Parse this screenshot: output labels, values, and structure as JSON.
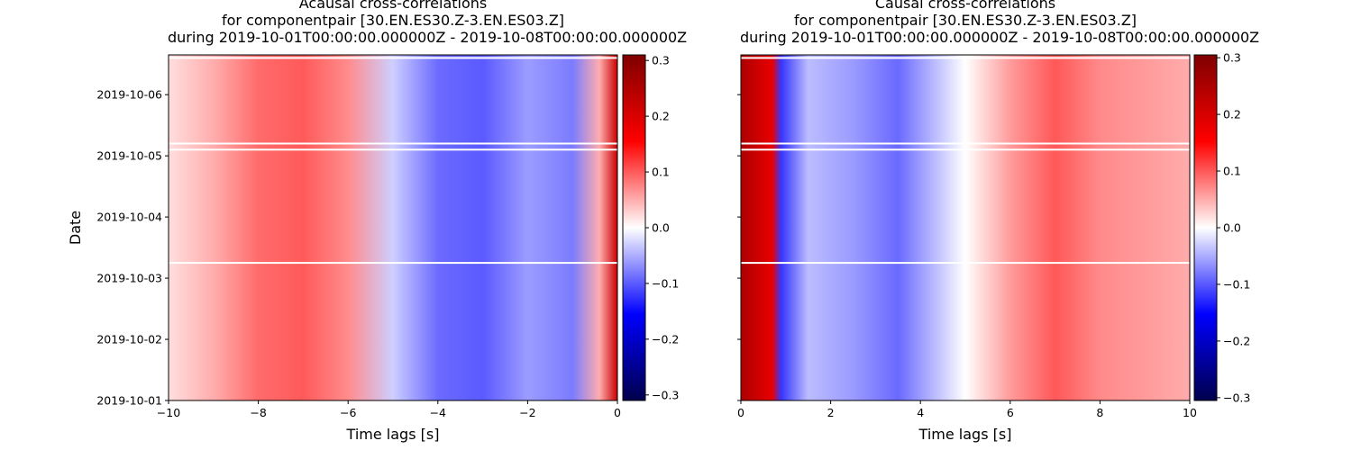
{
  "figure": {
    "ylabel": "Date",
    "colormap": [
      "#00004c",
      "#0000ff",
      "#ffffff",
      "#ff0000",
      "#7f0000"
    ]
  },
  "chart_data": [
    {
      "type": "heatmap",
      "title_lines": [
        "Acausal cross-correlations",
        "for componentpair [30.EN.ES30.Z-3.EN.ES03.Z]",
        "during 2019-10-01T00:00:00.000000Z - 2019-10-08T00:00:00.000000Z"
      ],
      "xlabel": "Time lags [s]",
      "ylabel": "Date",
      "xlim": [
        -10,
        0
      ],
      "xticks": [
        -10,
        -8,
        -6,
        -4,
        -2,
        0
      ],
      "xtick_labels": [
        "−10",
        "−8",
        "−6",
        "−4",
        "−2",
        "0"
      ],
      "yticks": [
        "2019-10-01",
        "2019-10-02",
        "2019-10-03",
        "2019-10-04",
        "2019-10-05",
        "2019-10-06"
      ],
      "ylim": [
        "2019-10-01",
        "2019-10-06.65"
      ],
      "colorbar": {
        "vmin": -0.31,
        "vmax": 0.31,
        "ticks": [
          -0.3,
          -0.2,
          -0.1,
          0.0,
          0.1,
          0.2,
          0.3
        ],
        "tick_labels": [
          "−0.3",
          "−0.2",
          "−0.1",
          "0.0",
          "0.1",
          "0.2",
          "0.3"
        ]
      },
      "lag_profile": [
        {
          "lag": -10,
          "value": 0.02
        },
        {
          "lag": -9,
          "value": 0.05
        },
        {
          "lag": -8,
          "value": 0.09
        },
        {
          "lag": -7,
          "value": 0.1
        },
        {
          "lag": -6,
          "value": 0.07
        },
        {
          "lag": -5,
          "value": -0.03
        },
        {
          "lag": -4,
          "value": -0.09
        },
        {
          "lag": -3,
          "value": -0.1
        },
        {
          "lag": -2,
          "value": -0.06
        },
        {
          "lag": -1,
          "value": -0.08
        },
        {
          "lag": -0.4,
          "value": 0.05
        },
        {
          "lag": 0,
          "value": 0.22
        }
      ],
      "gaps": [
        "2019-10-05.1",
        "2019-10-05.2",
        "2019-10-03.25",
        "2019-10-06.6"
      ]
    },
    {
      "type": "heatmap",
      "title_lines": [
        "Causal cross-correlations",
        "for componentpair [30.EN.ES30.Z-3.EN.ES03.Z]",
        "during 2019-10-01T00:00:00.000000Z - 2019-10-08T00:00:00.000000Z"
      ],
      "xlabel": "Time lags [s]",
      "xlim": [
        0,
        10
      ],
      "xticks": [
        0,
        2,
        4,
        6,
        8,
        10
      ],
      "xtick_labels": [
        "0",
        "2",
        "4",
        "6",
        "8",
        "10"
      ],
      "yticks": [
        "2019-10-01",
        "2019-10-02",
        "2019-10-03",
        "2019-10-04",
        "2019-10-05",
        "2019-10-06"
      ],
      "ylim": [
        "2019-10-01",
        "2019-10-06.65"
      ],
      "colorbar": {
        "vmin": -0.305,
        "vmax": 0.305,
        "ticks": [
          -0.3,
          -0.2,
          -0.1,
          0.0,
          0.1,
          0.2,
          0.3
        ],
        "tick_labels": [
          "−0.3",
          "−0.2",
          "−0.1",
          "0.0",
          "0.1",
          "0.2",
          "0.3"
        ]
      },
      "lag_profile": [
        {
          "lag": 0,
          "value": 0.25
        },
        {
          "lag": 0.3,
          "value": 0.22
        },
        {
          "lag": 0.7,
          "value": 0.18
        },
        {
          "lag": 0.9,
          "value": -0.12
        },
        {
          "lag": 1.5,
          "value": -0.04
        },
        {
          "lag": 2.5,
          "value": -0.06
        },
        {
          "lag": 3.5,
          "value": -0.09
        },
        {
          "lag": 5,
          "value": 0.0
        },
        {
          "lag": 6,
          "value": 0.06
        },
        {
          "lag": 7,
          "value": 0.1
        },
        {
          "lag": 8,
          "value": 0.07
        },
        {
          "lag": 10,
          "value": 0.05
        }
      ],
      "gaps": [
        "2019-10-05.1",
        "2019-10-05.2",
        "2019-10-03.25",
        "2019-10-06.6"
      ]
    }
  ]
}
